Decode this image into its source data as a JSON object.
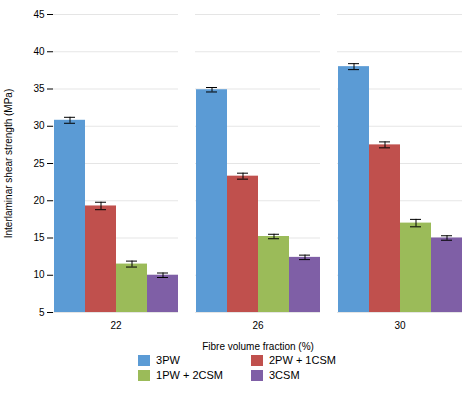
{
  "chart_data": {
    "type": "bar",
    "categories": [
      "22",
      "26",
      "30"
    ],
    "series": [
      {
        "name": "3PW",
        "color": "#5B9BD5",
        "values": [
          30.8,
          34.9,
          38.0
        ],
        "errors": [
          0.4,
          0.3,
          0.4
        ]
      },
      {
        "name": "2PW + 1CSM",
        "color": "#C0504D",
        "values": [
          19.3,
          23.3,
          27.5
        ],
        "errors": [
          0.5,
          0.4,
          0.4
        ]
      },
      {
        "name": "1PW + 2CSM",
        "color": "#9BBB59",
        "values": [
          11.5,
          15.2,
          17.0
        ],
        "errors": [
          0.4,
          0.3,
          0.5
        ]
      },
      {
        "name": "3CSM",
        "color": "#7F5FA6",
        "values": [
          10.0,
          12.4,
          15.0
        ],
        "errors": [
          0.3,
          0.3,
          0.3
        ]
      }
    ],
    "xlabel": "Fibre volume fraction (%)",
    "ylabel": "Interlaminar shear strength (MPa)",
    "ylim": [
      5,
      45
    ],
    "yticks": [
      5,
      10,
      15,
      20,
      25,
      30,
      35,
      40,
      45
    ],
    "grid": true,
    "legend": "bottom"
  }
}
